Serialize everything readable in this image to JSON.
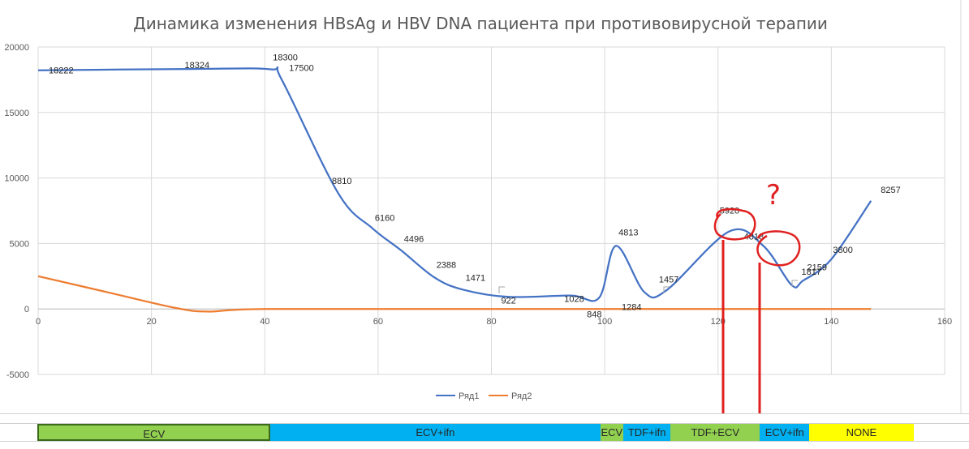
{
  "chart_data": {
    "type": "line",
    "title": "Динамика изменения HBsAg и HBV DNA пациента при противовирусной терапии",
    "xlim": [
      0,
      160
    ],
    "ylim": [
      -5000,
      20000
    ],
    "x_ticks": [
      "0",
      "20",
      "40",
      "60",
      "80",
      "100",
      "120",
      "140",
      "160"
    ],
    "y_ticks": [
      "-5000",
      "0",
      "5000",
      "10000",
      "15000",
      "20000"
    ],
    "grid": true,
    "legend_position": "bottom",
    "series": [
      {
        "name": "Ряд1",
        "color": "#4472c4",
        "points": [
          {
            "x": 0,
            "y": 18222,
            "label": "18222"
          },
          {
            "x": 27,
            "y": 18324,
            "label": "18324"
          },
          {
            "x": 41,
            "y": 18300,
            "label": "18300"
          },
          {
            "x": 43,
            "y": 17500,
            "label": "17500"
          },
          {
            "x": 53,
            "y": 8810,
            "label": "8810"
          },
          {
            "x": 59,
            "y": 6160,
            "label": "6160"
          },
          {
            "x": 64,
            "y": 4496,
            "label": "4496"
          },
          {
            "x": 70,
            "y": 2388,
            "label": "2388"
          },
          {
            "x": 75,
            "y": 1471,
            "label": "1471"
          },
          {
            "x": 83,
            "y": 922,
            "label": "922"
          },
          {
            "x": 94,
            "y": 1028,
            "label": "1028"
          },
          {
            "x": 99,
            "y": 848,
            "label": "848"
          },
          {
            "x": 102,
            "y": 4813,
            "label": "4813"
          },
          {
            "x": 107,
            "y": 1284,
            "label": "1284"
          },
          {
            "x": 111,
            "y": 1457,
            "label": "1457"
          },
          {
            "x": 122,
            "y": 5920,
            "label": "5920"
          },
          {
            "x": 128,
            "y": 4818,
            "label": "4818"
          },
          {
            "x": 133,
            "y": 1817,
            "label": "1817"
          },
          {
            "x": 135,
            "y": 2159,
            "label": "2159"
          },
          {
            "x": 140,
            "y": 3800,
            "label": "3800"
          },
          {
            "x": 147,
            "y": 8257,
            "label": "8257"
          }
        ]
      },
      {
        "name": "Ряд2",
        "color": "#ed7d31",
        "points": [
          {
            "x": 0,
            "y": 2500
          },
          {
            "x": 12,
            "y": 1300
          },
          {
            "x": 24,
            "y": 100
          },
          {
            "x": 30,
            "y": -200
          },
          {
            "x": 40,
            "y": 0
          },
          {
            "x": 80,
            "y": 0
          },
          {
            "x": 147,
            "y": 0
          }
        ]
      }
    ],
    "annotations": {
      "question_mark": "?",
      "color": "#e02020"
    }
  },
  "phases": [
    {
      "label": "ECV",
      "color": "#92d050",
      "x_start": -0.1,
      "x_end": 41
    },
    {
      "label": "ECV+ifn",
      "color": "#00b0f0",
      "x_start": 41,
      "x_end": 99.2
    },
    {
      "label": "ECV",
      "color": "#92d050",
      "x_start": 99.2,
      "x_end": 103.3
    },
    {
      "label": "TDF+ifn",
      "color": "#00b0f0",
      "x_start": 103.3,
      "x_end": 111.6
    },
    {
      "label": "TDF+ECV",
      "color": "#92d050",
      "x_start": 111.6,
      "x_end": 127.4
    },
    {
      "label": "ECV+ifn",
      "color": "#00b0f0",
      "x_start": 127.4,
      "x_end": 136.1
    },
    {
      "label": "NONE",
      "color": "#ffff00",
      "x_start": 136.1,
      "x_end": 154.5
    }
  ]
}
